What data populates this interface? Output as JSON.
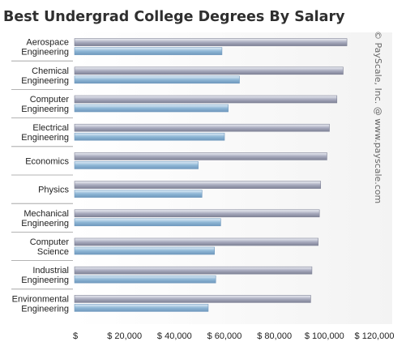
{
  "chart_data": {
    "type": "bar",
    "orientation": "horizontal",
    "title": "Best Undergrad College Degrees By Salary",
    "credit": "© PayScale, Inc. @ www.payscale.com",
    "categories": [
      [
        "Aerospace",
        "Engineering"
      ],
      [
        "Chemical",
        "Engineering"
      ],
      [
        "Computer",
        "Engineering"
      ],
      [
        "Electrical",
        "Engineering"
      ],
      [
        "Economics"
      ],
      [
        "Physics"
      ],
      [
        "Mechanical",
        "Engineering"
      ],
      [
        "Computer",
        "Science"
      ],
      [
        "Industrial",
        "Engineering"
      ],
      [
        "Environmental",
        "Engineering"
      ]
    ],
    "series": [
      {
        "values": [
          109000,
          107500,
          105000,
          102000,
          101000,
          98500,
          98000,
          97500,
          95000,
          94500
        ]
      },
      {
        "values": [
          59000,
          66000,
          61500,
          60000,
          49500,
          51000,
          58500,
          56000,
          56500,
          53500
        ]
      }
    ],
    "xlim": [
      0,
      120000
    ],
    "xticks": [
      {
        "value": 0,
        "label": "$"
      },
      {
        "value": 20000,
        "label": "$ 20,000"
      },
      {
        "value": 40000,
        "label": "$ 40,000"
      },
      {
        "value": 60000,
        "label": "$ 60,000"
      },
      {
        "value": 80000,
        "label": "$ 80,000"
      },
      {
        "value": 100000,
        "label": "$ 100,000"
      },
      {
        "value": 120000,
        "label": "$ 120,000"
      }
    ],
    "colors": {
      "series_1": "#a9acbf",
      "series_1_light": "#eef0f5",
      "series_1_dark": "#7f8296",
      "series_2": "#8fb7d6",
      "series_2_light": "#e1eef8",
      "series_2_dark": "#6f98bd",
      "plot_background": "#f3f3f3",
      "separator": "#9a9a9a"
    },
    "grid": false
  }
}
